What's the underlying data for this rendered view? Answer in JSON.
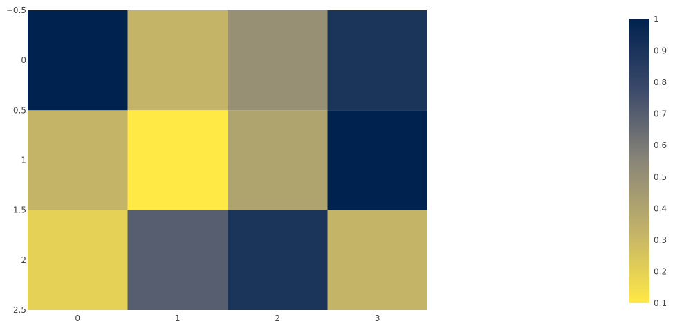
{
  "chart_data": {
    "type": "heatmap",
    "x": [
      0,
      1,
      2,
      3
    ],
    "y": [
      0,
      1,
      2
    ],
    "z": [
      [
        1.0,
        0.32,
        0.5,
        0.9
      ],
      [
        0.32,
        0.1,
        0.4,
        1.0
      ],
      [
        0.2,
        0.7,
        0.9,
        0.32
      ]
    ],
    "xlim": [
      -0.5,
      3.5
    ],
    "ylim": [
      -0.5,
      2.5
    ],
    "x_ticks": [
      "0",
      "1",
      "2",
      "3"
    ],
    "y_ticks": [
      "−0.5",
      "0",
      "0.5",
      "1",
      "1.5",
      "2",
      "2.5"
    ],
    "y_tick_values": [
      -0.5,
      0,
      0.5,
      1,
      1.5,
      2,
      2.5
    ],
    "y_reversed": true,
    "colorscale": "cividis-reversed",
    "colorscale_stops": [
      "#ffe945",
      "#c3b369",
      "#8a8678",
      "#3c4a6a",
      "#00224e"
    ],
    "colorbar": {
      "min": 0.1,
      "max": 1.0,
      "ticks": [
        "0.1",
        "0.2",
        "0.3",
        "0.4",
        "0.5",
        "0.6",
        "0.7",
        "0.8",
        "0.9",
        "1"
      ],
      "tick_values": [
        0.1,
        0.2,
        0.3,
        0.4,
        0.5,
        0.6,
        0.7,
        0.8,
        0.9,
        1.0
      ]
    },
    "title": "",
    "xlabel": "",
    "ylabel": "",
    "grid": false,
    "legend": "colorbar-right"
  }
}
